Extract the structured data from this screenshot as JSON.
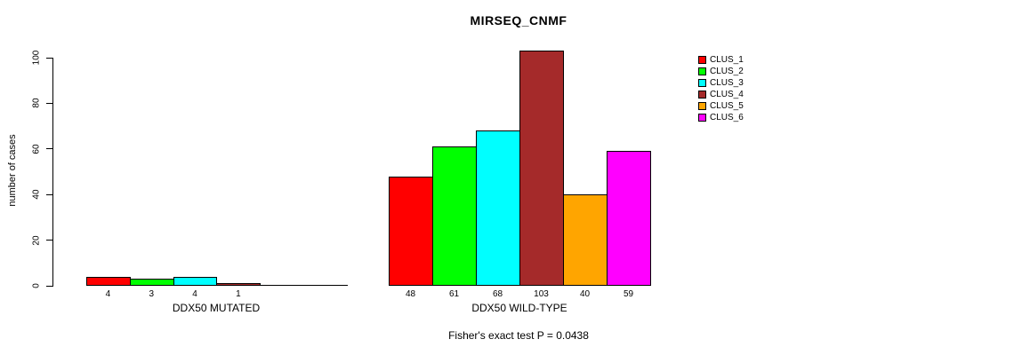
{
  "chart_data": {
    "type": "bar",
    "title": "MIRSEQ_CNMF",
    "ylabel": "number of cases",
    "xlabel": "",
    "ylim": [
      0,
      100
    ],
    "y_ticks": [
      0,
      20,
      40,
      60,
      80,
      100
    ],
    "grid": false,
    "legend_position": "right",
    "legend": [
      "CLUS_1",
      "CLUS_2",
      "CLUS_3",
      "CLUS_4",
      "CLUS_5",
      "CLUS_6"
    ],
    "colors": [
      "#FF0000",
      "#00FF00",
      "#00FFFF",
      "#A52A2A",
      "#FFA500",
      "#FF00FF"
    ],
    "annotation": "Fisher's exact test P = 0.0438",
    "groups": [
      {
        "label": "DDX50 MUTATED",
        "values": [
          4,
          3,
          4,
          1,
          0,
          0
        ],
        "value_labels": [
          "4",
          "3",
          "4",
          "1",
          "",
          ""
        ]
      },
      {
        "label": "DDX50 WILD-TYPE",
        "values": [
          48,
          61,
          68,
          103,
          40,
          59
        ],
        "value_labels": [
          "48",
          "61",
          "68",
          "103",
          "40",
          "59"
        ]
      }
    ]
  }
}
